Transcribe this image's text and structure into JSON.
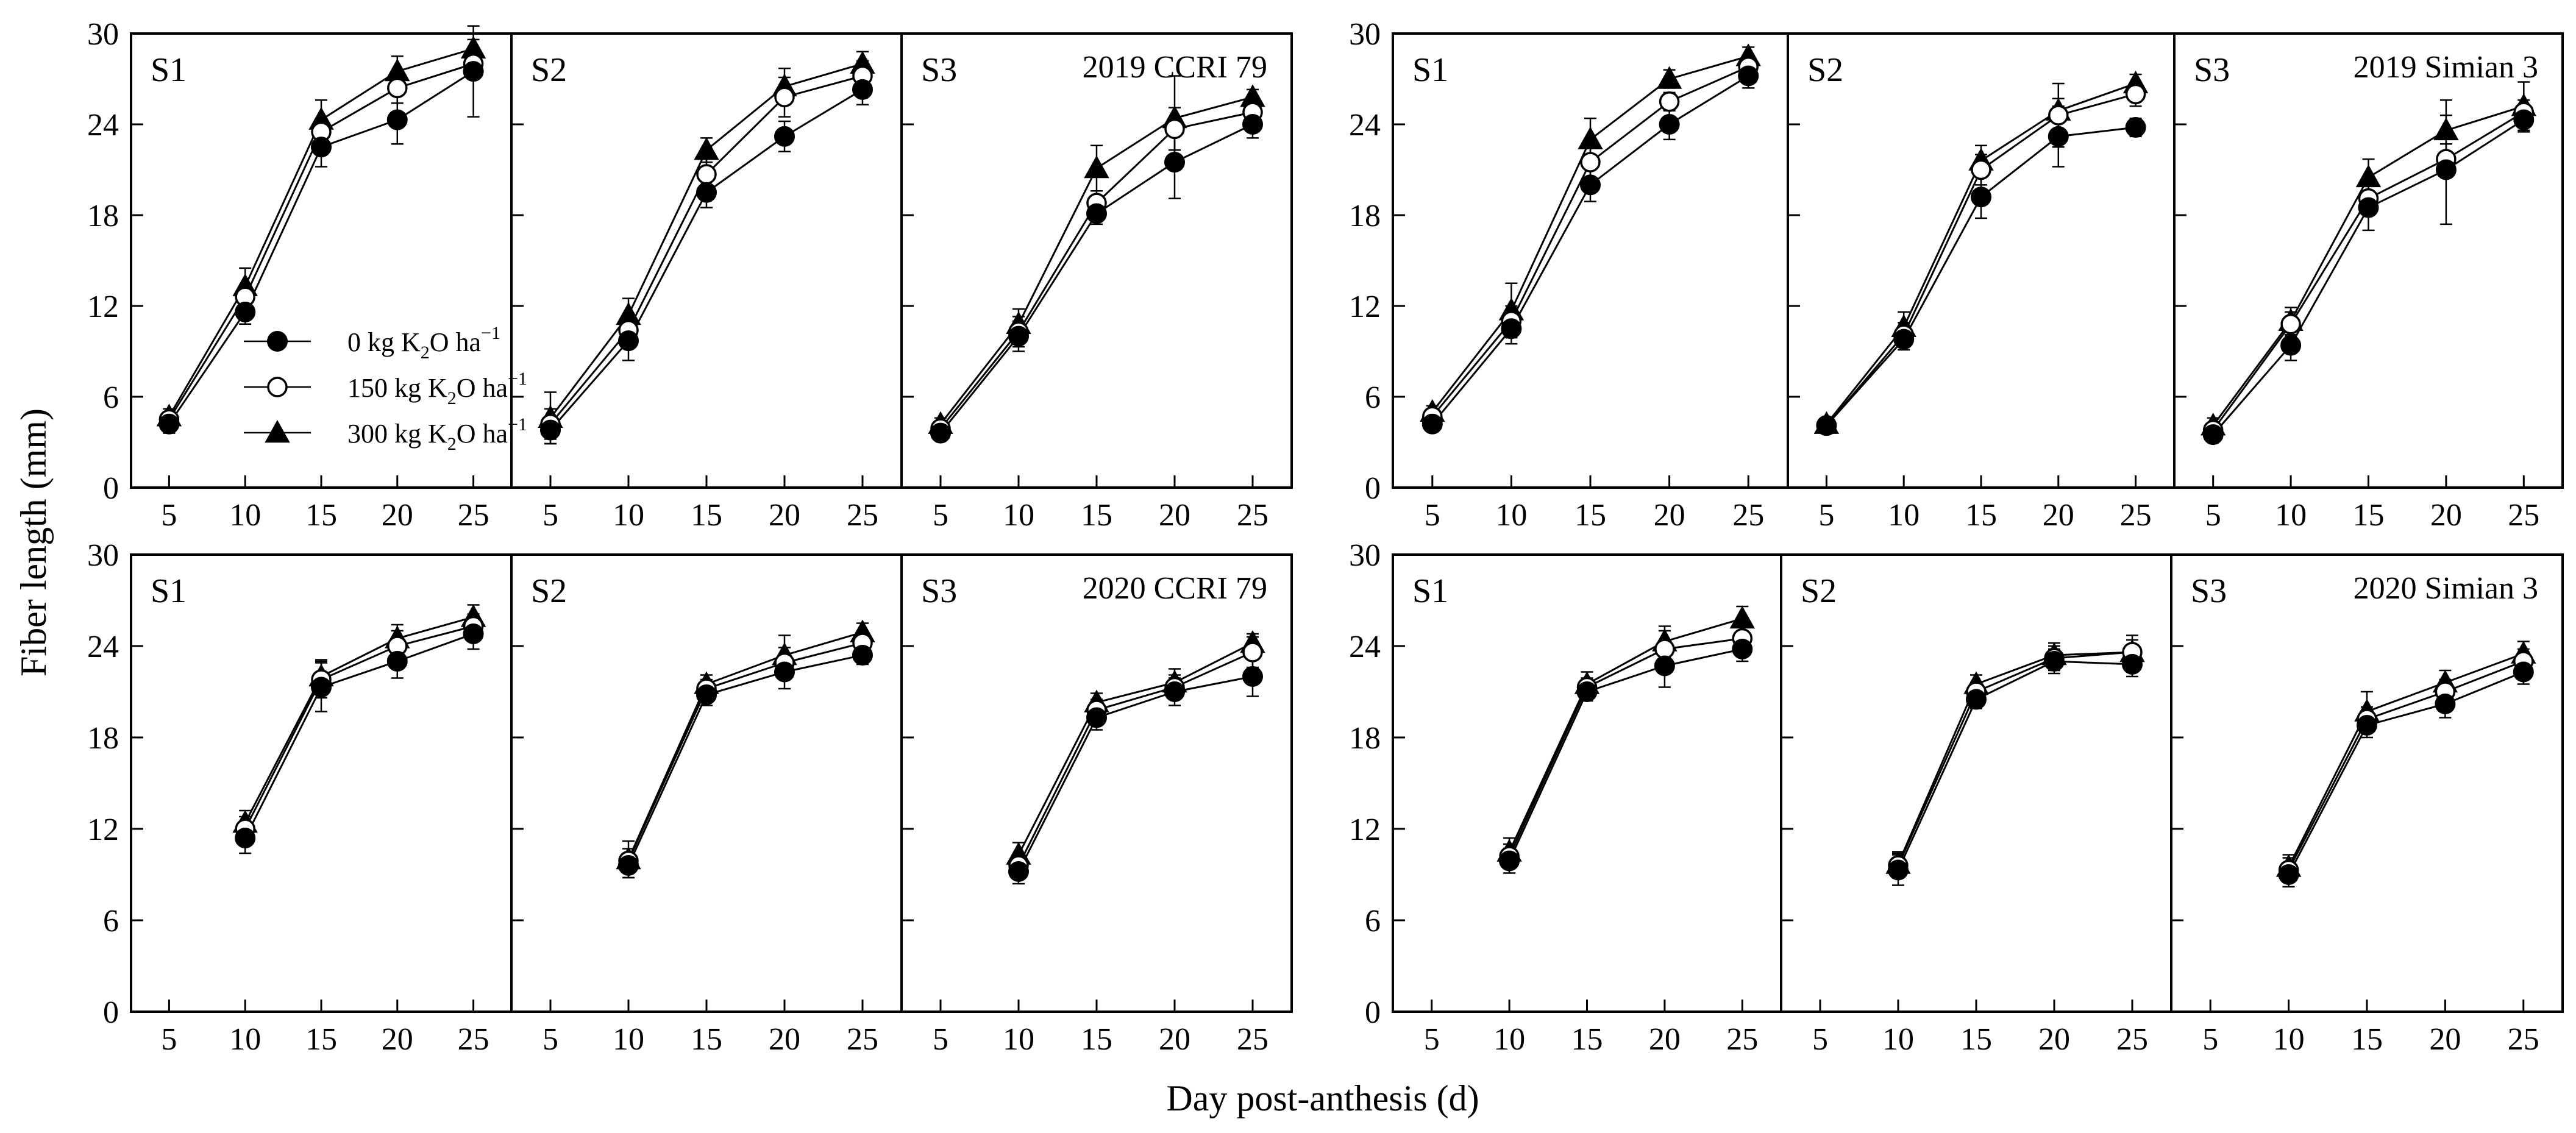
{
  "figure": {
    "ylabel": "Fiber length (mm)",
    "xlabel": "Day post-anthesis (d)",
    "legend": {
      "entries": [
        {
          "series": "k0",
          "label": "0 kg K",
          "sub": "2",
          "mid": "O ha",
          "sup": "−1"
        },
        {
          "series": "k150",
          "label": "150 kg K",
          "sub": "2",
          "mid": "O ha",
          "sup": "−1"
        },
        {
          "series": "k300",
          "label": "300 kg K",
          "sub": "2",
          "mid": "O ha",
          "sup": "−1"
        }
      ]
    },
    "series_styles": {
      "k0": {
        "marker": "circle-filled",
        "color": "#000000"
      },
      "k150": {
        "marker": "circle-open",
        "color": "#000000"
      },
      "k300": {
        "marker": "triangle-filled",
        "color": "#000000"
      }
    },
    "axis": {
      "ylim": [
        0,
        30
      ],
      "yticks": [
        "0",
        "6",
        "12",
        "18",
        "24",
        "30"
      ],
      "xlim": [
        2.5,
        27.5
      ],
      "xticks": [
        "5",
        "10",
        "15",
        "20",
        "25"
      ]
    }
  },
  "chart_data": [
    {
      "type": "line",
      "group": "2019 CCRI 79",
      "panel": "S1",
      "title": "2019 CCRI 79",
      "title_shown": false,
      "x": [
        5,
        10,
        15,
        20,
        25
      ],
      "ylim": [
        0,
        30
      ],
      "series": [
        {
          "name": "0 kg K2O ha-1",
          "key": "k0",
          "values": [
            4.2,
            11.6,
            22.5,
            24.3,
            27.5
          ],
          "err": [
            0.6,
            0.8,
            1.3,
            1.6,
            3.0
          ]
        },
        {
          "name": "150 kg K2O ha-1",
          "key": "k150",
          "values": [
            4.5,
            12.6,
            23.5,
            26.4,
            28.0
          ],
          "err": [
            0.4,
            0.8,
            0.9,
            1.0,
            1.0
          ]
        },
        {
          "name": "300 kg K2O ha-1",
          "key": "k300",
          "values": [
            4.7,
            13.3,
            24.3,
            27.5,
            29.0
          ],
          "err": [
            0.5,
            1.2,
            1.3,
            1.0,
            0.6
          ]
        }
      ]
    },
    {
      "type": "line",
      "group": "2019 CCRI 79",
      "panel": "S2",
      "title": "2019 CCRI 79",
      "title_shown": false,
      "x": [
        5,
        10,
        15,
        20,
        25
      ],
      "ylim": [
        0,
        30
      ],
      "series": [
        {
          "name": "0 kg K2O ha-1",
          "key": "k0",
          "values": [
            3.8,
            9.7,
            19.5,
            23.2,
            26.3
          ],
          "err": [
            0.9,
            1.3,
            1.0,
            1.0,
            1.0
          ]
        },
        {
          "name": "150 kg K2O ha-1",
          "key": "k150",
          "values": [
            4.2,
            10.4,
            20.7,
            25.8,
            27.2
          ],
          "err": [
            1.0,
            1.0,
            1.0,
            1.3,
            1.0
          ]
        },
        {
          "name": "300 kg K2O ha-1",
          "key": "k300",
          "values": [
            4.6,
            11.4,
            22.3,
            26.5,
            28.0
          ],
          "err": [
            1.7,
            1.1,
            0.8,
            1.2,
            0.8
          ]
        }
      ]
    },
    {
      "type": "line",
      "group": "2019 CCRI 79",
      "panel": "S3",
      "title": "2019 CCRI 79",
      "title_shown": true,
      "x": [
        5,
        10,
        15,
        20,
        25
      ],
      "ylim": [
        0,
        30
      ],
      "series": [
        {
          "name": "0 kg K2O ha-1",
          "key": "k0",
          "values": [
            3.6,
            10.0,
            18.1,
            21.5,
            24.0
          ],
          "err": [
            0.4,
            1.0,
            0.7,
            2.4,
            0.9
          ]
        },
        {
          "name": "150 kg K2O ha-1",
          "key": "k150",
          "values": [
            3.9,
            10.3,
            18.8,
            23.7,
            24.8
          ],
          "err": [
            0.4,
            1.0,
            0.8,
            1.4,
            0.8
          ]
        },
        {
          "name": "300 kg K2O ha-1",
          "key": "k300",
          "values": [
            4.2,
            10.8,
            21.1,
            24.4,
            25.8
          ],
          "err": [
            0.4,
            1.0,
            1.5,
            2.8,
            0.5
          ]
        }
      ]
    },
    {
      "type": "line",
      "group": "2019 Simian 3",
      "panel": "S1",
      "title": "2019 Simian 3",
      "title_shown": false,
      "x": [
        5,
        10,
        15,
        20,
        25
      ],
      "ylim": [
        0,
        30
      ],
      "series": [
        {
          "name": "0 kg K2O ha-1",
          "key": "k0",
          "values": [
            4.2,
            10.5,
            20.0,
            24.0,
            27.2
          ],
          "err": [
            0.4,
            1.0,
            1.1,
            1.0,
            0.8
          ]
        },
        {
          "name": "150 kg K2O ha-1",
          "key": "k150",
          "values": [
            4.7,
            11.0,
            21.5,
            25.5,
            27.8
          ],
          "err": [
            0.4,
            1.0,
            1.1,
            0.6,
            0.7
          ]
        },
        {
          "name": "300 kg K2O ha-1",
          "key": "k300",
          "values": [
            5.0,
            11.7,
            23.0,
            27.0,
            28.5
          ],
          "err": [
            0.4,
            1.8,
            1.4,
            0.6,
            0.6
          ]
        }
      ]
    },
    {
      "type": "line",
      "group": "2019 Simian 3",
      "panel": "S2",
      "title": "2019 Simian 3",
      "title_shown": false,
      "x": [
        5,
        10,
        15,
        20,
        25
      ],
      "ylim": [
        0,
        30
      ],
      "series": [
        {
          "name": "0 kg K2O ha-1",
          "key": "k0",
          "values": [
            4.1,
            9.8,
            19.2,
            23.2,
            23.8
          ],
          "err": [
            0.4,
            0.7,
            1.4,
            2.0,
            0.6
          ]
        },
        {
          "name": "150 kg K2O ha-1",
          "key": "k150",
          "values": [
            4.1,
            10.1,
            21.0,
            24.6,
            26.0
          ],
          "err": [
            0.4,
            0.8,
            1.0,
            2.1,
            0.8
          ]
        },
        {
          "name": "300 kg K2O ha-1",
          "key": "k300",
          "values": [
            4.2,
            10.6,
            21.6,
            24.9,
            26.7
          ],
          "err": [
            0.4,
            1.0,
            1.0,
            0.8,
            0.6
          ]
        }
      ]
    },
    {
      "type": "line",
      "group": "2019 Simian 3",
      "panel": "S3",
      "title": "2019 Simian 3",
      "title_shown": true,
      "x": [
        5,
        10,
        15,
        20,
        25
      ],
      "ylim": [
        0,
        30
      ],
      "series": [
        {
          "name": "0 kg K2O ha-1",
          "key": "k0",
          "values": [
            3.5,
            9.4,
            18.5,
            21.0,
            24.3
          ],
          "err": [
            0.4,
            1.0,
            1.5,
            3.6,
            0.8
          ]
        },
        {
          "name": "150 kg K2O ha-1",
          "key": "k150",
          "values": [
            3.8,
            10.8,
            19.1,
            21.7,
            24.8
          ],
          "err": [
            0.4,
            0.8,
            1.0,
            1.0,
            0.8
          ]
        },
        {
          "name": "300 kg K2O ha-1",
          "key": "k300",
          "values": [
            4.1,
            11.0,
            20.5,
            23.6,
            25.2
          ],
          "err": [
            0.5,
            0.9,
            1.2,
            2.0,
            1.6
          ]
        }
      ]
    },
    {
      "type": "line",
      "group": "2020 CCRI 79",
      "panel": "S1",
      "title": "2020 CCRI 79",
      "title_shown": false,
      "x": [
        10,
        15,
        20,
        25
      ],
      "ylim": [
        0,
        30
      ],
      "series": [
        {
          "name": "0 kg K2O ha-1",
          "key": "k0",
          "values": [
            11.4,
            21.3,
            23.0,
            24.8
          ],
          "err": [
            1.0,
            1.6,
            1.1,
            1.0
          ]
        },
        {
          "name": "150 kg K2O ha-1",
          "key": "k150",
          "values": [
            12.0,
            21.8,
            24.0,
            25.3
          ],
          "err": [
            0.8,
            1.2,
            1.0,
            0.8
          ]
        },
        {
          "name": "300 kg K2O ha-1",
          "key": "k300",
          "values": [
            12.4,
            22.0,
            24.5,
            25.9
          ],
          "err": [
            0.8,
            1.1,
            0.9,
            0.8
          ]
        }
      ]
    },
    {
      "type": "line",
      "group": "2020 CCRI 79",
      "panel": "S2",
      "title": "2020 CCRI 79",
      "title_shown": false,
      "x": [
        10,
        15,
        20,
        25
      ],
      "ylim": [
        0,
        30
      ],
      "series": [
        {
          "name": "0 kg K2O ha-1",
          "key": "k0",
          "values": [
            9.6,
            20.8,
            22.3,
            23.4
          ],
          "err": [
            0.8,
            0.7,
            1.1,
            0.6
          ]
        },
        {
          "name": "150 kg K2O ha-1",
          "key": "k150",
          "values": [
            9.9,
            21.2,
            22.9,
            24.2
          ],
          "err": [
            0.8,
            0.6,
            1.0,
            0.6
          ]
        },
        {
          "name": "300 kg K2O ha-1",
          "key": "k300",
          "values": [
            10.0,
            21.5,
            23.4,
            24.9
          ],
          "err": [
            1.2,
            0.6,
            1.3,
            0.6
          ]
        }
      ]
    },
    {
      "type": "line",
      "group": "2020 CCRI 79",
      "panel": "S3",
      "title": "2020 CCRI 79",
      "title_shown": true,
      "x": [
        10,
        15,
        20,
        25
      ],
      "ylim": [
        0,
        30
      ],
      "series": [
        {
          "name": "0 kg K2O ha-1",
          "key": "k0",
          "values": [
            9.2,
            19.3,
            21.0,
            22.0
          ],
          "err": [
            0.8,
            0.8,
            0.9,
            1.3
          ]
        },
        {
          "name": "150 kg K2O ha-1",
          "key": "k150",
          "values": [
            9.6,
            19.8,
            21.3,
            23.6
          ],
          "err": [
            0.8,
            0.7,
            0.8,
            1.0
          ]
        },
        {
          "name": "300 kg K2O ha-1",
          "key": "k300",
          "values": [
            10.3,
            20.3,
            21.6,
            24.2
          ],
          "err": [
            0.8,
            0.6,
            0.9,
            0.6
          ]
        }
      ]
    },
    {
      "type": "line",
      "group": "2020 Simian 3",
      "panel": "S1",
      "title": "2020 Simian 3",
      "title_shown": false,
      "x": [
        10,
        15,
        20,
        25
      ],
      "ylim": [
        0,
        30
      ],
      "series": [
        {
          "name": "0 kg K2O ha-1",
          "key": "k0",
          "values": [
            9.9,
            21.0,
            22.7,
            23.8
          ],
          "err": [
            0.8,
            0.6,
            1.4,
            0.8
          ]
        },
        {
          "name": "150 kg K2O ha-1",
          "key": "k150",
          "values": [
            10.2,
            21.3,
            23.8,
            24.5
          ],
          "err": [
            0.8,
            0.6,
            1.2,
            0.8
          ]
        },
        {
          "name": "300 kg K2O ha-1",
          "key": "k300",
          "values": [
            10.5,
            21.5,
            24.3,
            25.8
          ],
          "err": [
            0.9,
            0.8,
            1.0,
            0.8
          ]
        }
      ]
    },
    {
      "type": "line",
      "group": "2020 Simian 3",
      "panel": "S2",
      "title": "2020 Simian 3",
      "title_shown": false,
      "x": [
        10,
        15,
        20,
        25
      ],
      "ylim": [
        0,
        30
      ],
      "series": [
        {
          "name": "0 kg K2O ha-1",
          "key": "k0",
          "values": [
            9.3,
            20.5,
            23.0,
            22.8
          ],
          "err": [
            1.0,
            0.6,
            0.8,
            0.8
          ]
        },
        {
          "name": "150 kg K2O ha-1",
          "key": "k150",
          "values": [
            9.6,
            21.0,
            23.2,
            23.6
          ],
          "err": [
            0.8,
            0.6,
            0.8,
            1.1
          ]
        },
        {
          "name": "300 kg K2O ha-1",
          "key": "k300",
          "values": [
            9.7,
            21.5,
            23.4,
            23.6
          ],
          "err": [
            0.8,
            0.6,
            0.8,
            0.8
          ]
        }
      ]
    },
    {
      "type": "line",
      "group": "2020 Simian 3",
      "panel": "S3",
      "title": "2020 Simian 3",
      "title_shown": true,
      "x": [
        10,
        15,
        20,
        25
      ],
      "ylim": [
        0,
        30
      ],
      "series": [
        {
          "name": "0 kg K2O ha-1",
          "key": "k0",
          "values": [
            9.0,
            18.8,
            20.2,
            22.3
          ],
          "err": [
            0.8,
            0.8,
            0.9,
            0.8
          ]
        },
        {
          "name": "150 kg K2O ha-1",
          "key": "k150",
          "values": [
            9.3,
            19.2,
            21.0,
            23.0
          ],
          "err": [
            0.8,
            0.8,
            0.8,
            0.8
          ]
        },
        {
          "name": "300 kg K2O ha-1",
          "key": "k300",
          "values": [
            9.5,
            19.7,
            21.6,
            23.5
          ],
          "err": [
            0.8,
            1.3,
            0.8,
            0.8
          ]
        }
      ]
    }
  ]
}
